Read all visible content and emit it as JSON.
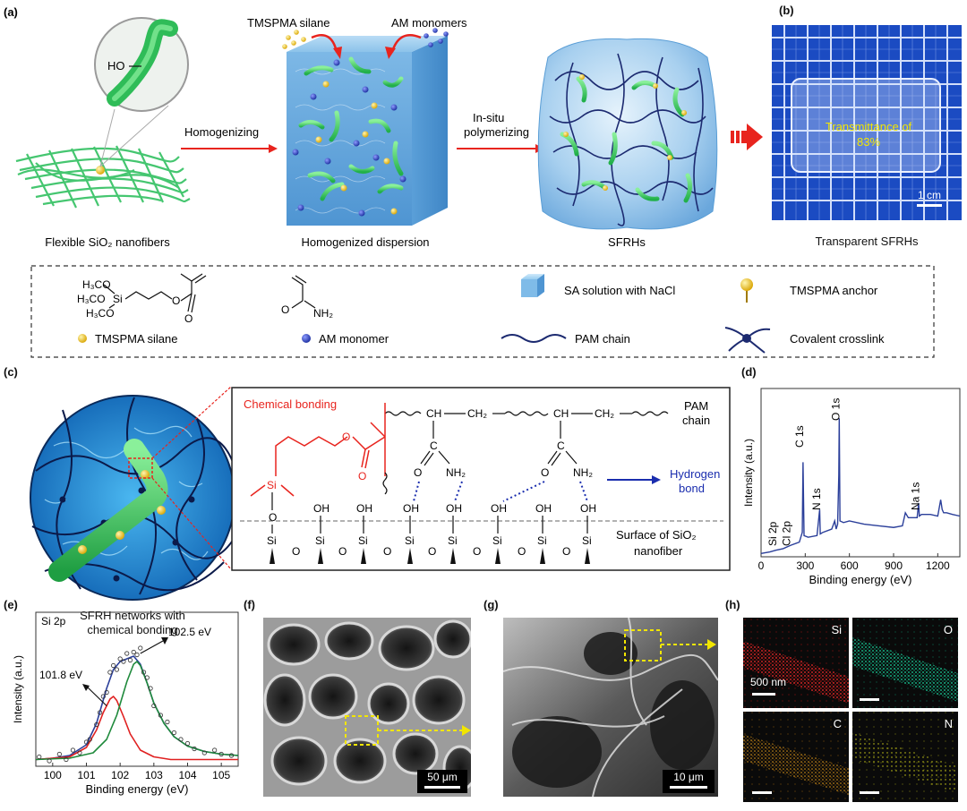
{
  "panels": {
    "a": {
      "label": "(a)",
      "nanofibers_caption": "Flexible SiO₂ nanofibers",
      "inset_oh": "HO",
      "homogenizing": "Homogenizing",
      "tmspma_silane_top": "TMSPMA silane",
      "am_monomers_top": "AM monomers",
      "dispersion_caption": "Homogenized dispersion",
      "in_situ_1": "In-situ",
      "in_situ_2": "polymerizing",
      "sfrh_caption": "SFRHs"
    },
    "b": {
      "label": "(b)",
      "transmittance_1": "Transmittance of",
      "transmittance_2": "83%",
      "scale": "1 cm",
      "caption": "Transparent SFRHs"
    },
    "legend": {
      "tmspma_silane": "TMSPMA silane",
      "am_monomer": "AM monomer",
      "sa_solution": "SA solution with NaCl",
      "pam_chain": "PAM chain",
      "tmspma_anchor": "TMSPMA anchor",
      "covalent": "Covalent crosslink",
      "struct": {
        "h3co": "H₃CO",
        "si": "Si",
        "o": "O",
        "nh2": "NH₂"
      }
    },
    "c": {
      "label": "(c)",
      "caption_1": "SFRH networks with",
      "caption_2": "chemical bonding",
      "chemical_bonding": "Chemical bonding",
      "pam_1": "PAM",
      "pam_2": "chain",
      "hydrogen_1": "Hydrogen",
      "hydrogen_2": "bond",
      "surface_1": "Surface of SiO₂",
      "surface_2": "nanofiber",
      "atoms": {
        "ch": "CH",
        "ch2": "CH₂",
        "c": "C",
        "o": "O",
        "nh2": "NH₂",
        "si": "Si",
        "oh": "OH"
      }
    },
    "d": {
      "label": "(d)"
    },
    "e": {
      "label": "(e)",
      "peak_low": "101.8 eV",
      "peak_high": "102.5 eV"
    },
    "f": {
      "label": "(f)",
      "scale": "50 μm"
    },
    "g": {
      "label": "(g)",
      "scale": "10 μm"
    },
    "h": {
      "label": "(h)",
      "si": "Si",
      "o": "O",
      "c": "C",
      "n": "N",
      "scale": "500 nm"
    }
  },
  "chart_data": [
    {
      "type": "line",
      "panel": "d",
      "xlabel": "Binding energy (eV)",
      "ylabel": "Intensity (a.u.)",
      "xlim": [
        0,
        1350
      ],
      "xticks": [
        0,
        300,
        600,
        900,
        1200
      ],
      "annotations": [
        {
          "text": "Si 2p",
          "x": 102
        },
        {
          "text": "Cl 2p",
          "x": 199
        },
        {
          "text": "C 1s",
          "x": 285
        },
        {
          "text": "N 1s",
          "x": 400
        },
        {
          "text": "O 1s",
          "x": 531
        },
        {
          "text": "Na 1s",
          "x": 1072
        }
      ],
      "series": [
        {
          "color": "#2b3f9a",
          "x": [
            0,
            60,
            100,
            150,
            200,
            260,
            280,
            285,
            292,
            320,
            380,
            398,
            402,
            420,
            480,
            500,
            510,
            520,
            528,
            531,
            536,
            560,
            600,
            700,
            800,
            900,
            960,
            980,
            1000,
            1060,
            1070,
            1075,
            1090,
            1150,
            1200,
            1220,
            1230,
            1240,
            1260,
            1300,
            1350
          ],
          "y": [
            0.02,
            0.03,
            0.04,
            0.05,
            0.07,
            0.09,
            0.15,
            0.58,
            0.13,
            0.12,
            0.13,
            0.29,
            0.14,
            0.15,
            0.17,
            0.22,
            0.17,
            0.2,
            0.5,
            0.85,
            0.22,
            0.21,
            0.22,
            0.2,
            0.19,
            0.18,
            0.19,
            0.27,
            0.24,
            0.24,
            0.33,
            0.25,
            0.26,
            0.26,
            0.25,
            0.35,
            0.29,
            0.27,
            0.27,
            0.26,
            0.25
          ]
        }
      ]
    },
    {
      "type": "line",
      "panel": "e",
      "title": "Si 2p",
      "xlabel": "Binding energy (eV)",
      "ylabel": "Intensity (a.u.)",
      "xlim": [
        99.5,
        105.5
      ],
      "xticks": [
        100,
        101,
        102,
        103,
        104,
        105
      ],
      "series": [
        {
          "role": "fit-total",
          "color": "#2b3f9a",
          "x": [
            99.5,
            100.0,
            100.5,
            101.0,
            101.3,
            101.6,
            101.8,
            102.0,
            102.2,
            102.4,
            102.6,
            102.8,
            103.0,
            103.3,
            103.6,
            104.0,
            104.5,
            105.0,
            105.5
          ],
          "y": [
            0.05,
            0.06,
            0.08,
            0.16,
            0.32,
            0.58,
            0.72,
            0.78,
            0.8,
            0.82,
            0.76,
            0.62,
            0.47,
            0.32,
            0.22,
            0.15,
            0.11,
            0.09,
            0.08
          ]
        },
        {
          "role": "component-101.8",
          "color": "#e02020",
          "x": [
            99.5,
            100.0,
            100.5,
            101.0,
            101.3,
            101.5,
            101.7,
            101.8,
            101.9,
            102.1,
            102.3,
            102.6,
            103.0,
            103.5,
            104.0,
            105.5
          ],
          "y": [
            0.05,
            0.06,
            0.07,
            0.14,
            0.27,
            0.4,
            0.5,
            0.52,
            0.49,
            0.37,
            0.24,
            0.12,
            0.07,
            0.05,
            0.05,
            0.05
          ]
        },
        {
          "role": "component-102.5",
          "color": "#1f8a3c",
          "x": [
            99.5,
            100.5,
            101.2,
            101.6,
            101.9,
            102.2,
            102.4,
            102.5,
            102.6,
            102.8,
            103.0,
            103.3,
            103.6,
            104.0,
            104.5,
            105.0,
            105.5
          ],
          "y": [
            0.05,
            0.06,
            0.1,
            0.2,
            0.38,
            0.63,
            0.76,
            0.78,
            0.75,
            0.62,
            0.47,
            0.32,
            0.22,
            0.15,
            0.11,
            0.09,
            0.08
          ]
        },
        {
          "role": "raw-data",
          "color": "#333333",
          "x": [
            99.6,
            99.9,
            100.2,
            100.4,
            100.6,
            100.8,
            101.0,
            101.1,
            101.3,
            101.4,
            101.5,
            101.6,
            101.7,
            101.8,
            101.9,
            102.0,
            102.1,
            102.2,
            102.3,
            102.4,
            102.5,
            102.6,
            102.7,
            102.8,
            102.9,
            103.0,
            103.2,
            103.4,
            103.6,
            103.8,
            104.0,
            104.2,
            104.5,
            104.8,
            105.0,
            105.3
          ],
          "y": [
            0.07,
            0.04,
            0.09,
            0.05,
            0.12,
            0.1,
            0.18,
            0.2,
            0.31,
            0.4,
            0.52,
            0.55,
            0.7,
            0.75,
            0.72,
            0.8,
            0.78,
            0.84,
            0.79,
            0.85,
            0.83,
            0.88,
            0.7,
            0.66,
            0.58,
            0.45,
            0.38,
            0.33,
            0.25,
            0.2,
            0.17,
            0.13,
            0.1,
            0.12,
            0.09,
            0.08
          ]
        }
      ]
    }
  ]
}
